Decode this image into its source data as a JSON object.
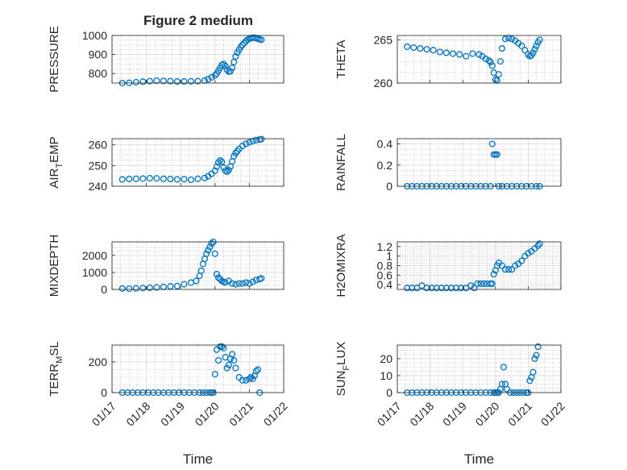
{
  "figure": {
    "title": "Figure 2 medium"
  },
  "style": {
    "marker_color": "#0072BD",
    "axis_color": "#262626",
    "grid_color": "#b0b0b0"
  },
  "chart_data": [
    {
      "type": "scatter",
      "ylabel": "PRESSURE",
      "xlabel": "",
      "xlim": [
        "01/17",
        "01/22"
      ],
      "ylim": [
        750,
        1000
      ],
      "yticks": [
        800,
        900,
        1000
      ],
      "x": [
        17.3,
        17.5,
        17.7,
        17.9,
        18.1,
        18.3,
        18.5,
        18.7,
        18.9,
        19.1,
        19.3,
        19.5,
        19.7,
        19.8,
        19.9,
        20.0,
        20.05,
        20.1,
        20.15,
        20.2,
        20.25,
        20.3,
        20.35,
        20.4,
        20.45,
        20.5,
        20.55,
        20.6,
        20.65,
        20.7,
        20.75,
        20.8,
        20.85,
        20.9,
        20.95,
        21.0,
        21.05,
        21.1,
        21.15,
        21.2,
        21.25,
        21.3,
        21.35
      ],
      "y": [
        750,
        751,
        754,
        757,
        760,
        762,
        761,
        760,
        758,
        758,
        759,
        760,
        763,
        770,
        780,
        790,
        800,
        815,
        830,
        845,
        850,
        840,
        820,
        810,
        812,
        830,
        860,
        890,
        910,
        925,
        940,
        950,
        960,
        970,
        978,
        983,
        986,
        988,
        988,
        986,
        983,
        980,
        977
      ]
    },
    {
      "type": "scatter",
      "ylabel": "THETA",
      "xlabel": "",
      "xlim": [
        "01/17",
        "01/22"
      ],
      "ylim": [
        260,
        265.5
      ],
      "yticks": [
        260,
        265
      ],
      "x": [
        17.3,
        17.5,
        17.7,
        17.9,
        18.1,
        18.3,
        18.5,
        18.7,
        18.9,
        19.1,
        19.3,
        19.5,
        19.6,
        19.7,
        19.8,
        19.85,
        19.9,
        19.95,
        20.0,
        20.05,
        20.1,
        20.15,
        20.2,
        20.3,
        20.4,
        20.5,
        20.6,
        20.7,
        20.8,
        20.9,
        21.0,
        21.05,
        21.1,
        21.15,
        21.2,
        21.25,
        21.3,
        21.35
      ],
      "y": [
        264.2,
        264.1,
        264.0,
        263.9,
        263.8,
        263.6,
        263.5,
        263.4,
        263.3,
        263.1,
        263.4,
        263.3,
        263.1,
        262.8,
        262.6,
        262.4,
        262.0,
        261.2,
        260.4,
        260.3,
        261.0,
        262.5,
        264.0,
        265.1,
        265.2,
        265.1,
        264.9,
        264.6,
        264.3,
        263.8,
        263.3,
        263.1,
        263.2,
        263.5,
        263.9,
        264.3,
        264.7,
        265.0
      ]
    },
    {
      "type": "scatter",
      "ylabel": "AIR_TEMP",
      "xlabel": "",
      "xlim": [
        "01/17",
        "01/22"
      ],
      "ylim": [
        240,
        263
      ],
      "yticks": [
        240,
        250,
        260
      ],
      "x": [
        17.3,
        17.5,
        17.7,
        17.9,
        18.1,
        18.3,
        18.5,
        18.7,
        18.9,
        19.1,
        19.3,
        19.5,
        19.7,
        19.8,
        19.9,
        20.0,
        20.05,
        20.1,
        20.15,
        20.2,
        20.25,
        20.3,
        20.35,
        20.4,
        20.45,
        20.5,
        20.55,
        20.6,
        20.65,
        20.7,
        20.8,
        20.9,
        21.0,
        21.1,
        21.2,
        21.3,
        21.35
      ],
      "y": [
        243.3,
        243.5,
        243.6,
        243.7,
        243.9,
        243.8,
        243.6,
        243.5,
        243.3,
        243.4,
        243.1,
        243.6,
        244.0,
        244.8,
        246.0,
        247.5,
        249.5,
        251.5,
        252.5,
        251.8,
        249.0,
        247.5,
        247.0,
        247.8,
        249.5,
        252.0,
        254.5,
        256.0,
        257.0,
        258.0,
        259.5,
        260.5,
        261.2,
        261.8,
        262.3,
        262.6,
        262.8
      ]
    },
    {
      "type": "scatter",
      "ylabel": "RAINFALL",
      "xlabel": "",
      "xlim": [
        "01/17",
        "01/22"
      ],
      "ylim": [
        0,
        0.45
      ],
      "yticks": [
        0,
        0.2,
        0.4
      ],
      "x": [
        17.3,
        17.45,
        17.6,
        17.75,
        17.9,
        18.05,
        18.2,
        18.35,
        18.5,
        18.65,
        18.8,
        18.95,
        19.1,
        19.25,
        19.4,
        19.55,
        19.7,
        19.85,
        19.9,
        19.95,
        20.0,
        20.05,
        20.1,
        20.2,
        20.35,
        20.5,
        20.65,
        20.8,
        20.95,
        21.1,
        21.25,
        21.35
      ],
      "y": [
        0,
        0,
        0,
        0,
        0,
        0,
        0,
        0,
        0,
        0,
        0,
        0,
        0,
        0,
        0,
        0,
        0,
        0,
        0.4,
        0.3,
        0.3,
        0.3,
        0,
        0,
        0,
        0,
        0,
        0,
        0,
        0,
        0,
        0
      ]
    },
    {
      "type": "scatter",
      "ylabel": "MIXDEPTH",
      "xlabel": "",
      "xlim": [
        "01/17",
        "01/22"
      ],
      "ylim": [
        0,
        2800
      ],
      "yticks": [
        0,
        1000,
        2000
      ],
      "x": [
        17.3,
        17.5,
        17.7,
        17.9,
        18.1,
        18.3,
        18.5,
        18.7,
        18.9,
        19.1,
        19.3,
        19.45,
        19.55,
        19.6,
        19.65,
        19.7,
        19.75,
        19.8,
        19.85,
        19.9,
        19.95,
        20.0,
        20.05,
        20.1,
        20.15,
        20.2,
        20.25,
        20.3,
        20.4,
        20.5,
        20.6,
        20.7,
        20.8,
        20.9,
        21.0,
        21.1,
        21.2,
        21.3,
        21.35
      ],
      "y": [
        50,
        40,
        60,
        80,
        100,
        120,
        150,
        180,
        200,
        300,
        400,
        500,
        800,
        1100,
        1500,
        1800,
        2100,
        2300,
        2500,
        2700,
        2800,
        2100,
        900,
        700,
        600,
        500,
        450,
        400,
        500,
        350,
        300,
        350,
        350,
        400,
        350,
        450,
        550,
        600,
        650
      ]
    },
    {
      "type": "scatter",
      "ylabel": "H2OMIXRA",
      "xlabel": "",
      "xlim": [
        "01/17",
        "01/22"
      ],
      "ylim": [
        0.3,
        1.3
      ],
      "yticks": [
        0.4,
        0.6,
        0.8,
        1,
        1.2
      ],
      "x": [
        17.3,
        17.45,
        17.6,
        17.75,
        17.9,
        18.05,
        18.2,
        18.35,
        18.5,
        18.65,
        18.8,
        18.95,
        19.1,
        19.25,
        19.35,
        19.45,
        19.55,
        19.65,
        19.75,
        19.85,
        19.9,
        19.95,
        20.0,
        20.05,
        20.1,
        20.2,
        20.3,
        20.4,
        20.5,
        20.6,
        20.7,
        20.8,
        20.9,
        21.0,
        21.1,
        21.2,
        21.3,
        21.35
      ],
      "y": [
        0.33,
        0.33,
        0.33,
        0.38,
        0.33,
        0.33,
        0.33,
        0.33,
        0.33,
        0.33,
        0.33,
        0.33,
        0.33,
        0.38,
        0.33,
        0.42,
        0.42,
        0.42,
        0.42,
        0.42,
        0.42,
        0.62,
        0.7,
        0.8,
        0.86,
        0.8,
        0.72,
        0.72,
        0.72,
        0.8,
        0.84,
        0.9,
        1.0,
        1.06,
        1.1,
        1.16,
        1.22,
        1.26
      ]
    },
    {
      "type": "scatter",
      "ylabel": "TERR_MSL",
      "xlabel": "Time",
      "xlim": [
        "01/17",
        "01/22"
      ],
      "ylim": [
        0,
        310
      ],
      "yticks": [
        0,
        200
      ],
      "xticks": [
        "01/17",
        "01/18",
        "01/19",
        "01/20",
        "01/21",
        "01/22"
      ],
      "x": [
        17.3,
        17.45,
        17.6,
        17.75,
        17.9,
        18.05,
        18.2,
        18.35,
        18.5,
        18.65,
        18.8,
        18.95,
        19.1,
        19.25,
        19.4,
        19.55,
        19.65,
        19.75,
        19.85,
        19.9,
        19.95,
        20.0,
        20.05,
        20.1,
        20.15,
        20.2,
        20.25,
        20.3,
        20.35,
        20.4,
        20.45,
        20.5,
        20.55,
        20.6,
        20.7,
        20.8,
        20.9,
        21.0,
        21.05,
        21.1,
        21.15,
        21.2,
        21.25,
        21.3
      ],
      "y": [
        0,
        0,
        0,
        0,
        0,
        0,
        0,
        0,
        0,
        0,
        0,
        0,
        0,
        0,
        0,
        0,
        0,
        0,
        0,
        0,
        0,
        120,
        280,
        210,
        300,
        300,
        290,
        230,
        160,
        180,
        220,
        250,
        210,
        160,
        100,
        80,
        80,
        90,
        100,
        90,
        110,
        140,
        150,
        0
      ]
    },
    {
      "type": "scatter",
      "ylabel": "SUN_FLUX",
      "xlabel": "Time",
      "xlim": [
        "01/17",
        "01/22"
      ],
      "ylim": [
        0,
        28
      ],
      "yticks": [
        0,
        10,
        20
      ],
      "xticks": [
        "01/17",
        "01/18",
        "01/19",
        "01/20",
        "01/21",
        "01/22"
      ],
      "x": [
        17.3,
        17.45,
        17.6,
        17.75,
        17.9,
        18.05,
        18.2,
        18.35,
        18.5,
        18.65,
        18.8,
        18.95,
        19.1,
        19.25,
        19.4,
        19.55,
        19.7,
        19.85,
        19.95,
        20.0,
        20.05,
        20.1,
        20.15,
        20.2,
        20.25,
        20.3,
        20.35,
        20.45,
        20.55,
        20.65,
        20.75,
        20.85,
        20.95,
        21.0,
        21.05,
        21.1,
        21.15,
        21.2,
        21.25,
        21.3
      ],
      "y": [
        0,
        0,
        0,
        0,
        0,
        0,
        0,
        0,
        0,
        0,
        0,
        0,
        0,
        0,
        0,
        0,
        0,
        0,
        0,
        0,
        0,
        0,
        2,
        5,
        15,
        5,
        2,
        0,
        0,
        0,
        0,
        0,
        0,
        0,
        7,
        9,
        12,
        20,
        22,
        27
      ]
    }
  ]
}
